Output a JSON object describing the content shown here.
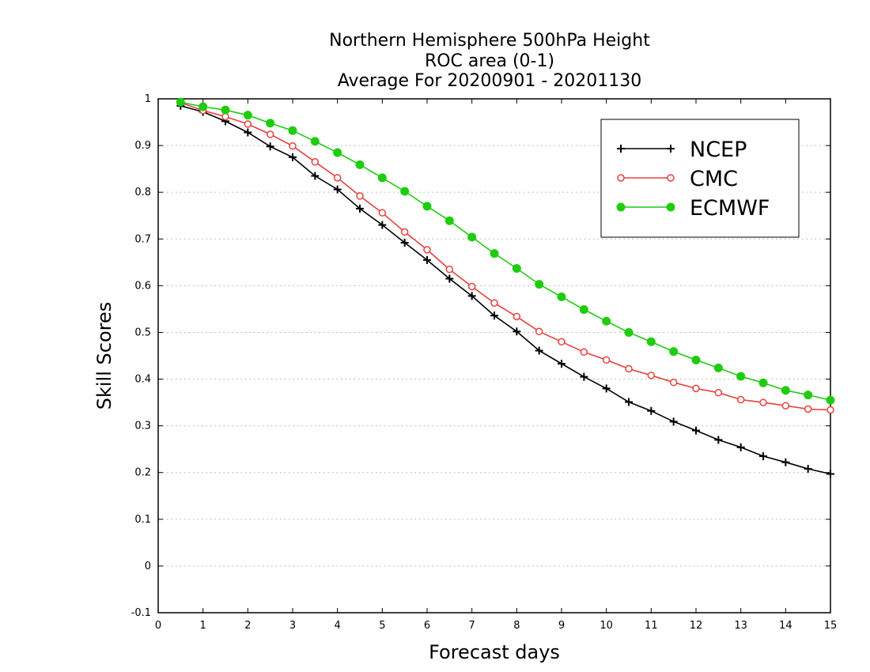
{
  "chart_data": {
    "type": "line",
    "title_lines": [
      "Northern Hemisphere 500hPa Height",
      "ROC area (0-1)",
      "Average For 20200901 - 20201130"
    ],
    "xlabel": "Forecast days",
    "ylabel": "Skill Scores",
    "xlim": [
      0,
      15
    ],
    "ylim": [
      -0.1,
      1
    ],
    "xticks": [
      "0",
      "1",
      "2",
      "3",
      "4",
      "5",
      "6",
      "7",
      "8",
      "9",
      "10",
      "11",
      "12",
      "13",
      "14",
      "15"
    ],
    "yticks": [
      "-0.1",
      "0",
      "0.1",
      "0.2",
      "0.3",
      "0.4",
      "0.5",
      "0.6",
      "0.7",
      "0.8",
      "0.9",
      "1"
    ],
    "grid": "horizontal dotted",
    "legend_position": "top-right",
    "x": [
      0.5,
      1,
      1.5,
      2,
      2.5,
      3,
      3.5,
      4,
      4.5,
      5,
      5.5,
      6,
      6.5,
      7,
      7.5,
      8,
      8.5,
      9,
      9.5,
      10,
      10.5,
      11,
      11.5,
      12,
      12.5,
      13,
      13.5,
      14,
      14.5,
      15
    ],
    "series": [
      {
        "name": "NCEP",
        "color": "#000000",
        "marker": "plus",
        "values": [
          0.985,
          0.972,
          0.952,
          0.928,
          0.898,
          0.875,
          0.835,
          0.806,
          0.765,
          0.73,
          0.692,
          0.655,
          0.615,
          0.578,
          0.536,
          0.502,
          0.461,
          0.433,
          0.405,
          0.38,
          0.351,
          0.332,
          0.309,
          0.29,
          0.27,
          0.254,
          0.235,
          0.222,
          0.208,
          0.197
        ]
      },
      {
        "name": "CMC",
        "color": "#e8403c",
        "marker": "open-circle",
        "values": [
          0.992,
          0.975,
          0.962,
          0.946,
          0.924,
          0.899,
          0.865,
          0.831,
          0.792,
          0.756,
          0.715,
          0.677,
          0.635,
          0.598,
          0.563,
          0.534,
          0.502,
          0.48,
          0.458,
          0.441,
          0.422,
          0.408,
          0.393,
          0.38,
          0.371,
          0.356,
          0.35,
          0.343,
          0.336,
          0.334
        ]
      },
      {
        "name": "ECMWF",
        "color": "#1fcc10",
        "marker": "filled-circle",
        "values": [
          0.993,
          0.983,
          0.976,
          0.965,
          0.948,
          0.932,
          0.909,
          0.885,
          0.859,
          0.831,
          0.802,
          0.77,
          0.739,
          0.704,
          0.669,
          0.637,
          0.603,
          0.576,
          0.549,
          0.524,
          0.5,
          0.48,
          0.459,
          0.441,
          0.424,
          0.406,
          0.392,
          0.376,
          0.366,
          0.355
        ]
      }
    ]
  }
}
